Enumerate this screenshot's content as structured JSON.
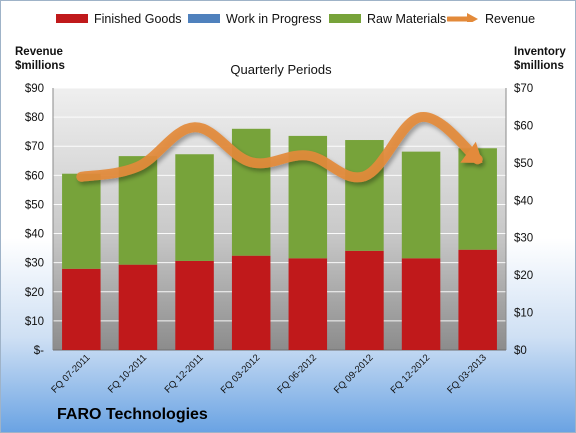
{
  "legend": [
    {
      "label": "Finished Goods",
      "color": "#c0191b",
      "icon": "bar-swatch"
    },
    {
      "label": "Work in Progress",
      "color": "#4f81bd",
      "icon": "bar-swatch"
    },
    {
      "label": "Raw Materials",
      "color": "#77a33a",
      "icon": "bar-swatch"
    },
    {
      "label": "Revenue",
      "color": "#e38a3a",
      "icon": "arrow-swatch"
    }
  ],
  "left_axis_title": {
    "line1": "Revenue",
    "line2": "$millions"
  },
  "right_axis_title": {
    "line1": "Inventory",
    "line2": "$millions"
  },
  "chart_title": "Quarterly Periods",
  "company": "FARO Technologies",
  "chart_data": {
    "type": "bar",
    "stacked": true,
    "categories": [
      "FQ 07-2011",
      "FQ 10-2011",
      "FQ 12-2011",
      "FQ 03-2012",
      "FQ 06-2012",
      "FQ 09-2012",
      "FQ 12-2012",
      "FQ 03-2013"
    ],
    "series": [
      {
        "name": "Finished Goods",
        "axis": "right",
        "values": [
          21.7,
          22.8,
          23.8,
          25.2,
          24.5,
          26.5,
          24.5,
          26.8
        ]
      },
      {
        "name": "Work in Progress",
        "axis": "right",
        "values": [
          0,
          0,
          0,
          0,
          0,
          0,
          0,
          0
        ]
      },
      {
        "name": "Raw Materials",
        "axis": "right",
        "values": [
          25.4,
          29.0,
          28.5,
          33.9,
          32.7,
          29.6,
          28.5,
          27.1
        ]
      },
      {
        "name": "Revenue",
        "axis": "left",
        "type": "line",
        "values": [
          59.5,
          63.0,
          76.5,
          64.5,
          66.8,
          59.7,
          80.0,
          65.5
        ]
      }
    ],
    "left_axis": {
      "ylim": [
        0,
        90
      ],
      "ticks": [
        "$-",
        "$10",
        "$20",
        "$30",
        "$40",
        "$50",
        "$60",
        "$70",
        "$80",
        "$90"
      ]
    },
    "right_axis": {
      "ylim": [
        0,
        70
      ],
      "ticks": [
        "$0",
        "$10",
        "$20",
        "$30",
        "$40",
        "$50",
        "$60",
        "$70"
      ]
    },
    "grid": true,
    "legend_position": "top"
  }
}
